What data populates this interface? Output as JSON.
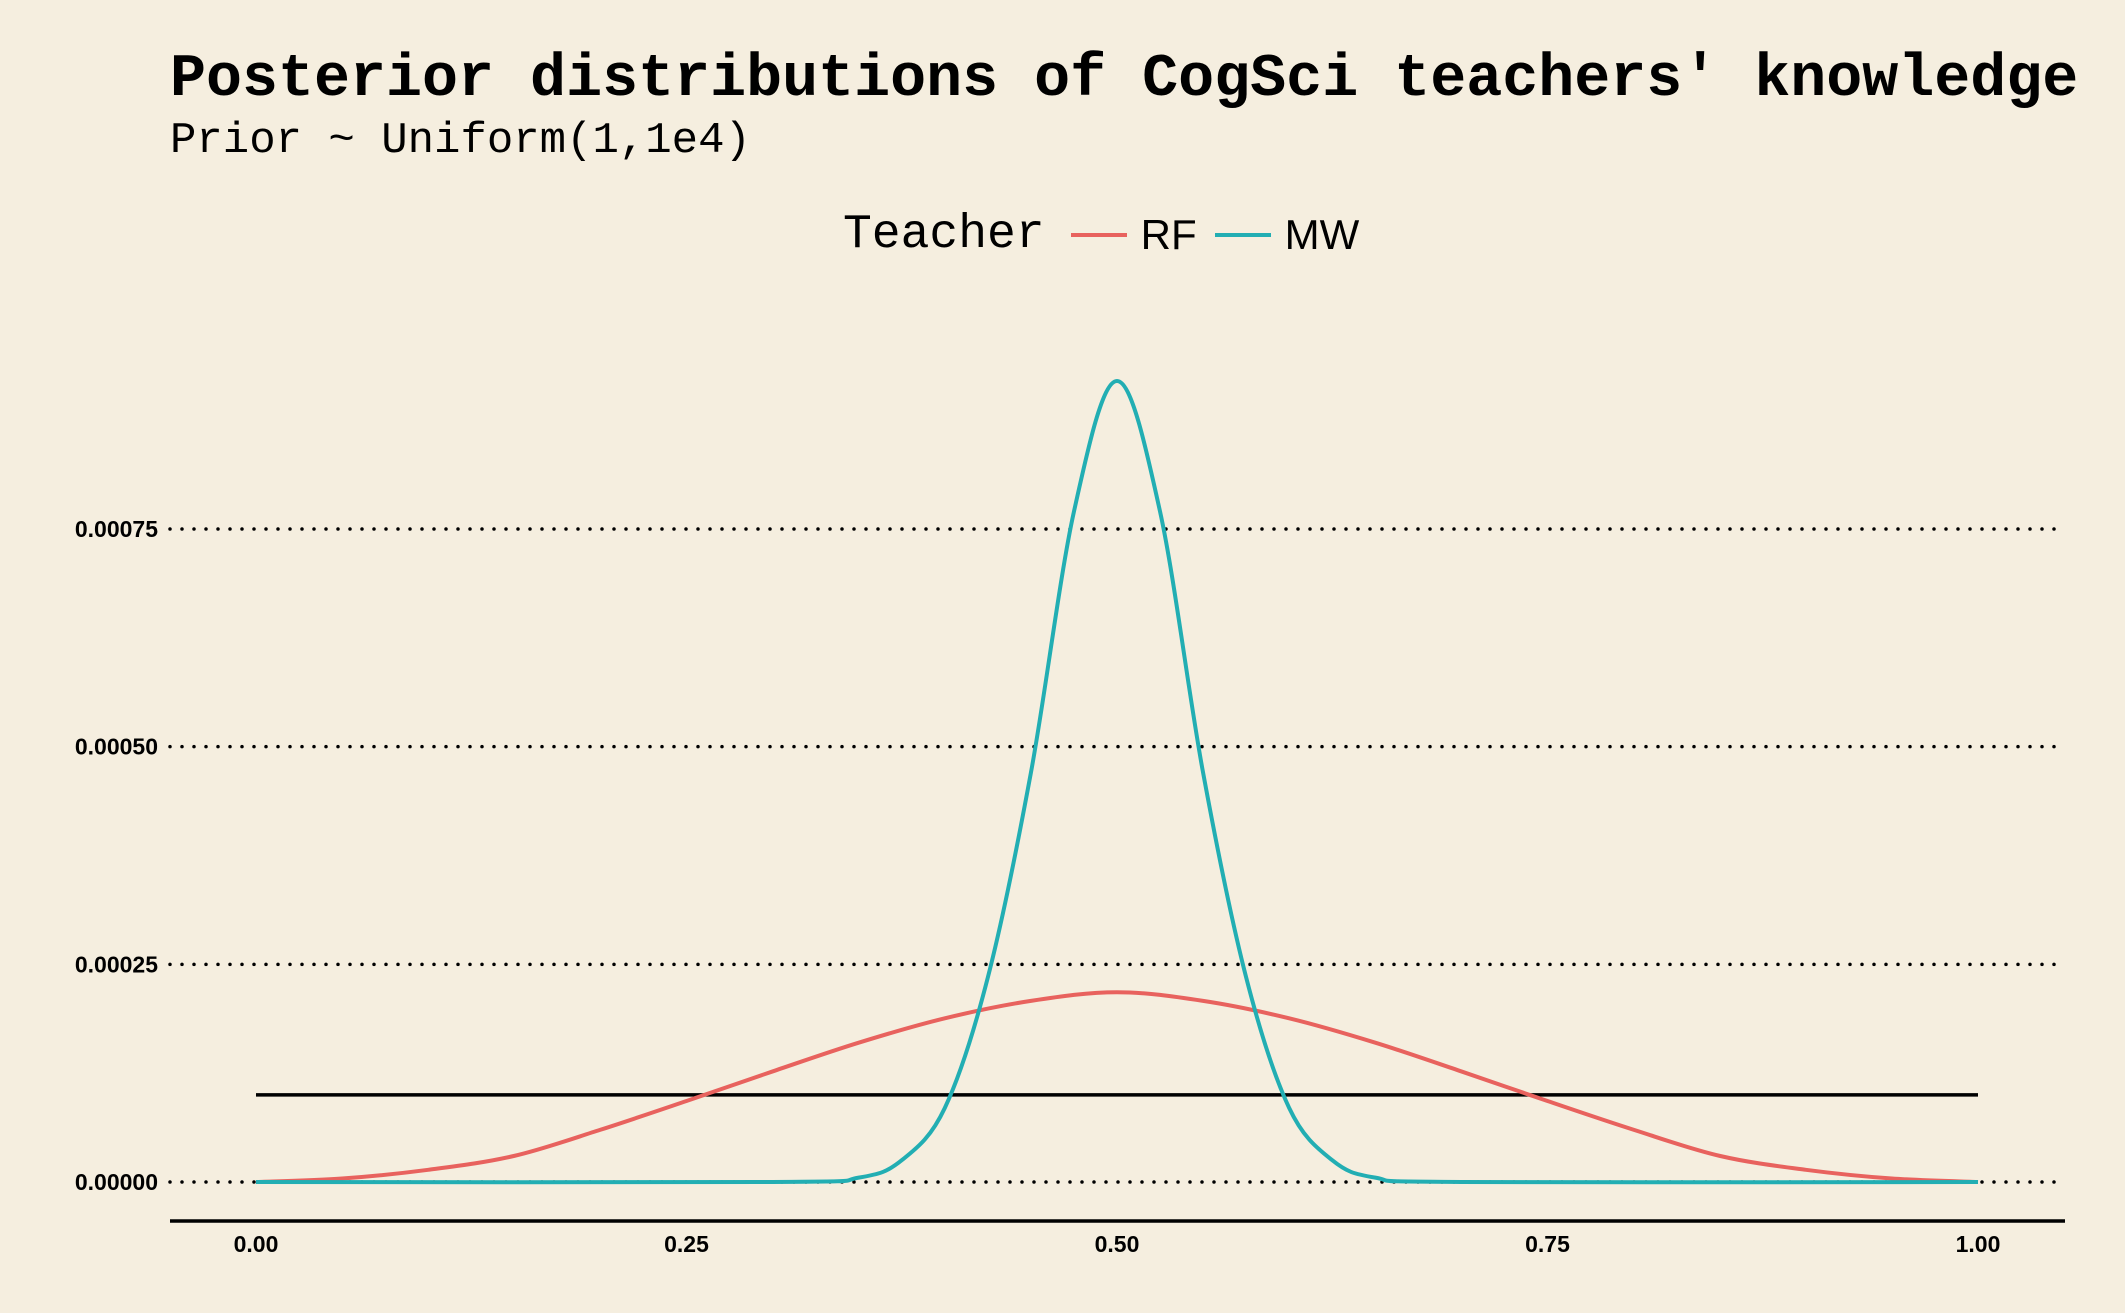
{
  "title": "Posterior distributions of CogSci teachers' knowledge",
  "subtitle": "Prior ~ Uniform(1,1e4)",
  "legend": {
    "title": "Teacher",
    "position": "top",
    "items": [
      {
        "label": "RF",
        "color": "#e8625e"
      },
      {
        "label": "MW",
        "color": "#22aeb3"
      }
    ]
  },
  "chart_data": {
    "type": "line",
    "title": "Posterior distributions of CogSci teachers' knowledge",
    "subtitle": "Prior ~ Uniform(1,1e4)",
    "xlabel": "",
    "ylabel": "",
    "xlim": [
      0,
      1
    ],
    "ylim": [
      0,
      0.00093
    ],
    "x_ticks": [
      "0.00",
      "0.25",
      "0.50",
      "0.75",
      "1.00"
    ],
    "y_ticks": [
      "0.00000",
      "0.00025",
      "0.00050",
      "0.00075"
    ],
    "grid": "horizontal dotted",
    "legend_title": "Teacher",
    "legend_position": "top",
    "series": [
      {
        "name": "RF",
        "color": "#e8625e",
        "x": [
          0.0,
          0.05,
          0.1,
          0.15,
          0.2,
          0.25,
          0.3,
          0.35,
          0.4,
          0.45,
          0.5,
          0.55,
          0.6,
          0.65,
          0.7,
          0.75,
          0.8,
          0.85,
          0.9,
          0.95,
          1.0
        ],
        "y": [
          0.0,
          4e-06,
          1.4e-05,
          3e-05,
          6e-05,
          9.3e-05,
          0.000127,
          0.00016,
          0.000188,
          0.000208,
          0.000218,
          0.000208,
          0.000188,
          0.00016,
          0.000127,
          9.3e-05,
          6e-05,
          3e-05,
          1.4e-05,
          4e-06,
          0.0
        ]
      },
      {
        "name": "MW",
        "color": "#22aeb3",
        "x": [
          0.0,
          0.3,
          0.35,
          0.375,
          0.4,
          0.425,
          0.45,
          0.475,
          0.5,
          0.525,
          0.55,
          0.575,
          0.6,
          0.625,
          0.65,
          0.7,
          1.0
        ],
        "y": [
          0.0,
          0.0,
          5e-06,
          2.5e-05,
          8.5e-05,
          0.000235,
          0.00047,
          0.00077,
          0.00092,
          0.00077,
          0.00047,
          0.000235,
          8.5e-05,
          2.5e-05,
          5e-06,
          0.0,
          0.0
        ]
      },
      {
        "name": "",
        "color": "#000000",
        "x": [
          0.0,
          1.0
        ],
        "y": [
          0.0001,
          0.0001
        ]
      }
    ]
  }
}
